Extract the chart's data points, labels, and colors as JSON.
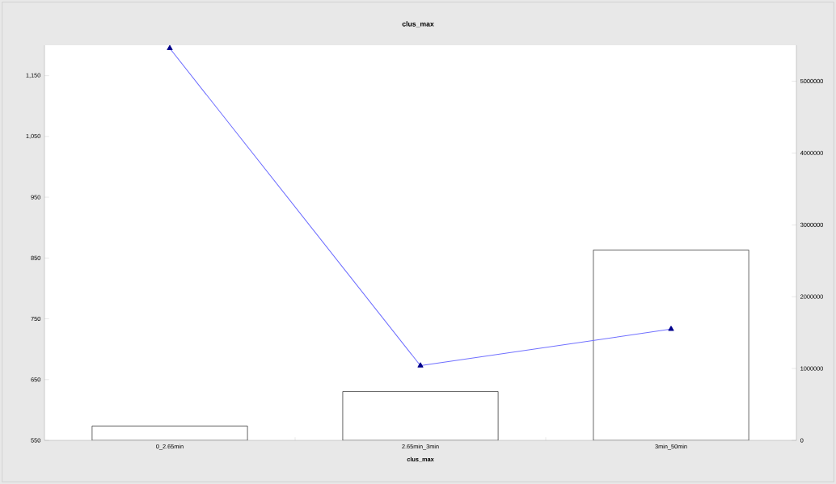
{
  "chart_data": {
    "type": "bar",
    "title": "clus_max",
    "xlabel": "clus_max",
    "categories": [
      "0_2.65min",
      "2.65min_3min",
      "3min_50min"
    ],
    "series": [
      {
        "axis": "y2",
        "color": "#ffffff",
        "values": [
          200000,
          680000,
          2650000
        ]
      },
      {
        "type": "line",
        "color": "#7070ff",
        "values": [
          1195,
          673,
          733
        ]
      }
    ],
    "marker": "triangle",
    "grid": false,
    "legend": false,
    "ylim": [
      550,
      1200
    ],
    "yticks": [
      550,
      650,
      750,
      850,
      950,
      {
        "value": 1050,
        "label": "1,050"
      },
      {
        "value": 1150,
        "label": "1,150"
      }
    ],
    "y2lim": [
      0,
      5500000
    ],
    "y2ticks": [
      0,
      1000000,
      2000000,
      3000000,
      4000000,
      5000000
    ]
  }
}
